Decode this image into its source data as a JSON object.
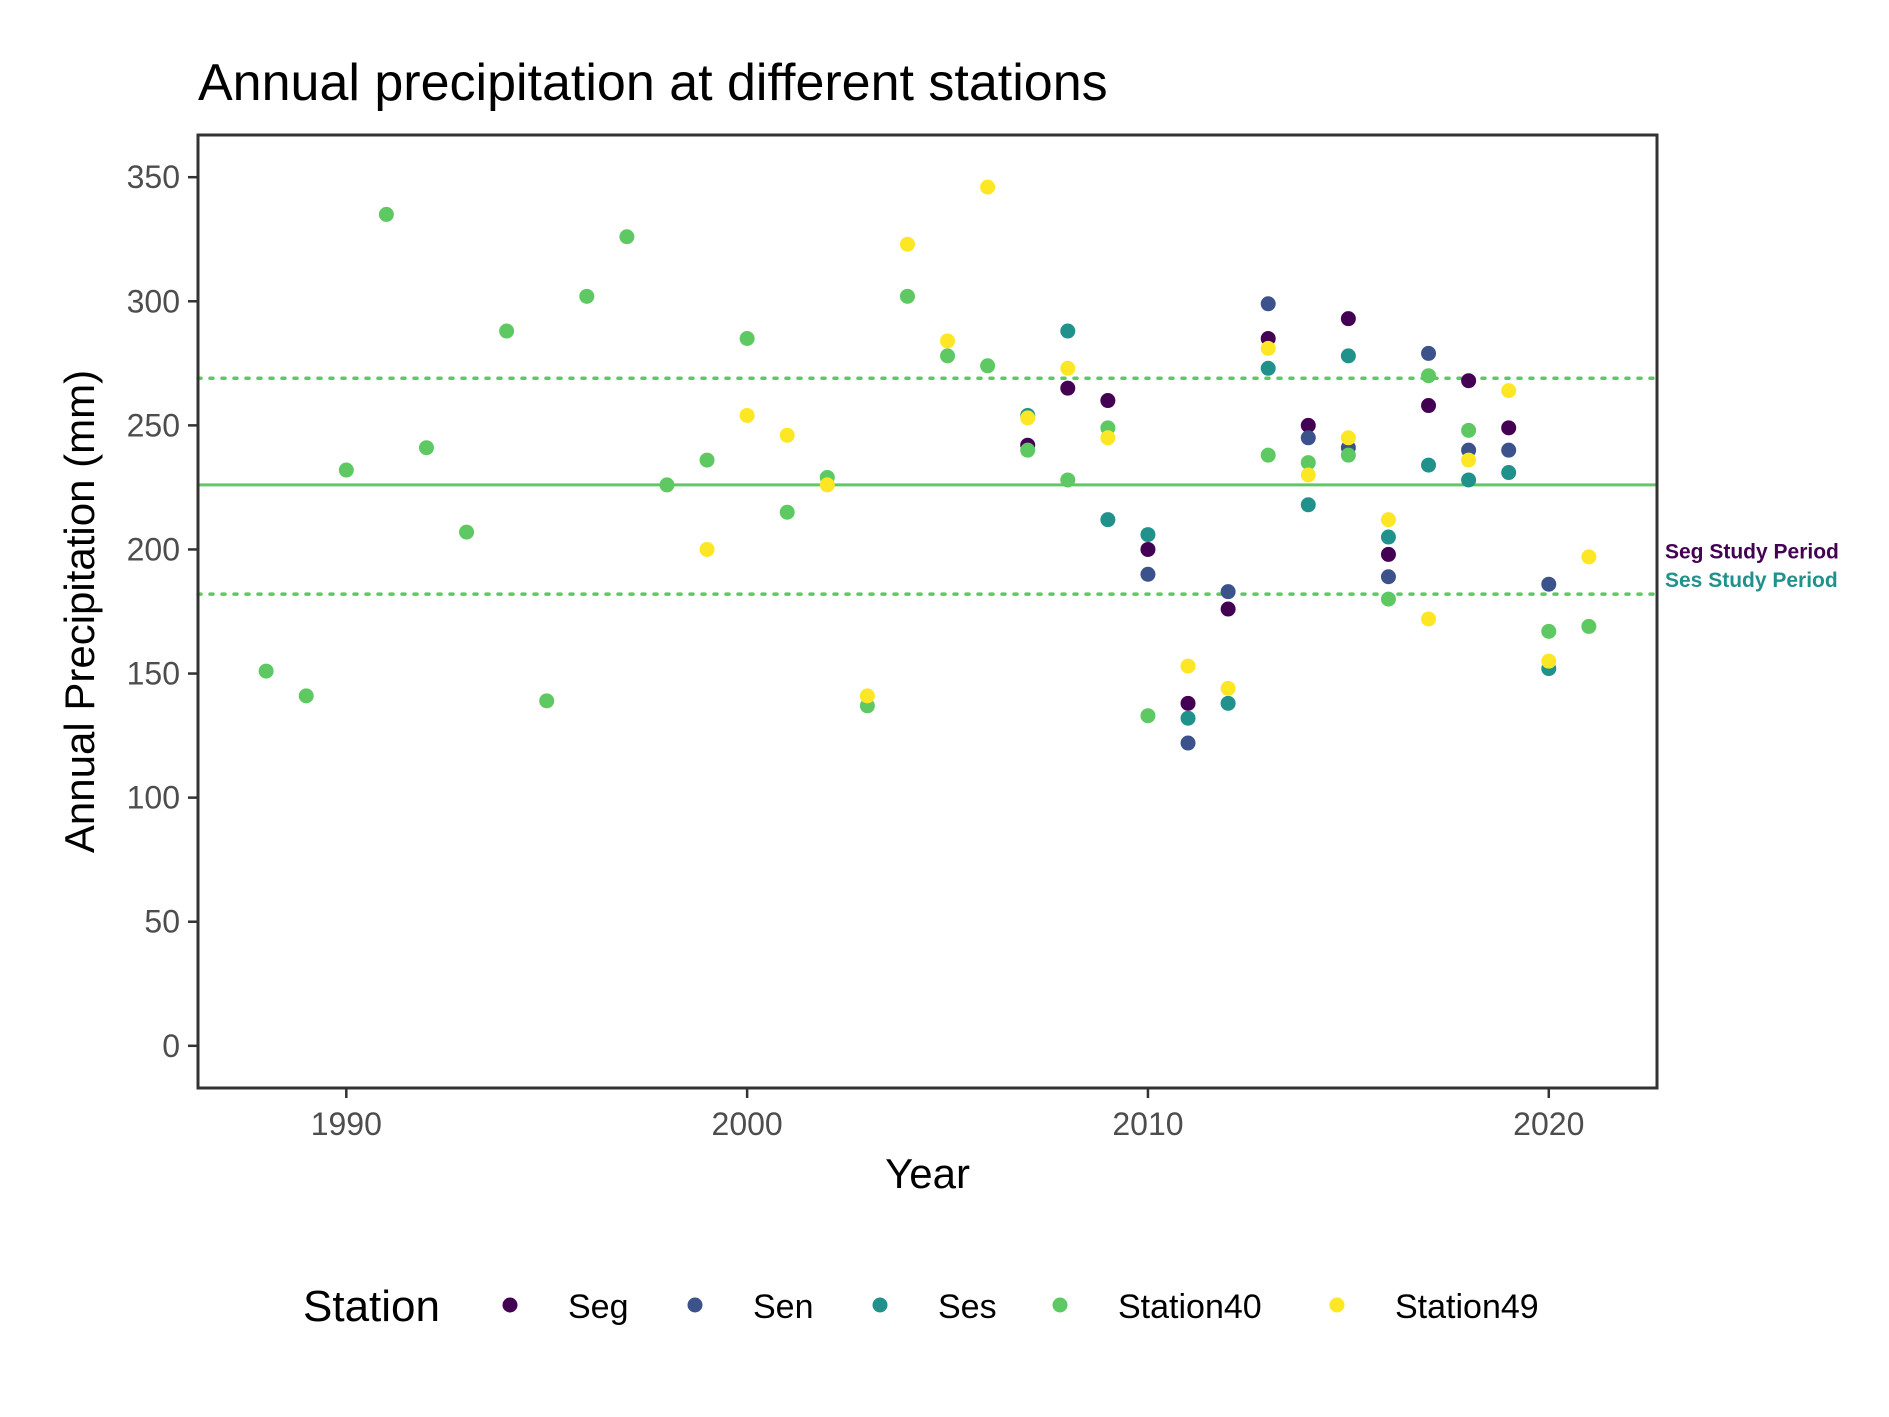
{
  "chart_data": {
    "type": "scatter",
    "title": "Annual precipitation at different stations",
    "xlabel": "Year",
    "ylabel": "Annual Precipitation (mm)",
    "xlim": [
      1986.3,
      2022.7
    ],
    "ylim": [
      -17,
      367
    ],
    "xticks": [
      1990,
      2000,
      2010,
      2020
    ],
    "yticks": [
      0,
      50,
      100,
      150,
      200,
      250,
      300,
      350
    ],
    "grid": false,
    "legend": {
      "title": "Station",
      "position": "bottom"
    },
    "reference_lines": [
      {
        "value": 226,
        "style": "solid",
        "color": "#5ec962"
      },
      {
        "value": 269,
        "style": "dotted",
        "color": "#5ec962"
      },
      {
        "value": 182,
        "style": "dotted",
        "color": "#5ec962"
      }
    ],
    "annotations": [
      {
        "text": "Seg Study Period",
        "color": "#440154"
      },
      {
        "text": "Ses Study Period",
        "color": "#21918c"
      }
    ],
    "series": [
      {
        "name": "Seg",
        "color": "#440154",
        "points": [
          [
            2007,
            242
          ],
          [
            2008,
            265
          ],
          [
            2009,
            260
          ],
          [
            2010,
            200
          ],
          [
            2011,
            138
          ],
          [
            2012,
            176
          ],
          [
            2013,
            285
          ],
          [
            2014,
            250
          ],
          [
            2015,
            293
          ],
          [
            2016,
            198
          ],
          [
            2017,
            258
          ],
          [
            2018,
            268
          ],
          [
            2019,
            249
          ]
        ]
      },
      {
        "name": "Sen",
        "color": "#3b528b",
        "points": [
          [
            2010,
            190
          ],
          [
            2011,
            122
          ],
          [
            2012,
            183
          ],
          [
            2013,
            299
          ],
          [
            2014,
            245
          ],
          [
            2015,
            241
          ],
          [
            2016,
            189
          ],
          [
            2017,
            279
          ],
          [
            2018,
            240
          ],
          [
            2019,
            240
          ],
          [
            2020,
            186
          ]
        ]
      },
      {
        "name": "Ses",
        "color": "#21918c",
        "points": [
          [
            2007,
            254
          ],
          [
            2008,
            288
          ],
          [
            2009,
            212
          ],
          [
            2010,
            206
          ],
          [
            2011,
            132
          ],
          [
            2012,
            138
          ],
          [
            2013,
            273
          ],
          [
            2014,
            218
          ],
          [
            2015,
            278
          ],
          [
            2016,
            205
          ],
          [
            2017,
            234
          ],
          [
            2018,
            228
          ],
          [
            2019,
            231
          ],
          [
            2020,
            152
          ]
        ]
      },
      {
        "name": "Station40",
        "color": "#5ec962",
        "points": [
          [
            1988,
            151
          ],
          [
            1989,
            141
          ],
          [
            1990,
            232
          ],
          [
            1991,
            335
          ],
          [
            1992,
            241
          ],
          [
            1993,
            207
          ],
          [
            1994,
            288
          ],
          [
            1995,
            139
          ],
          [
            1996,
            302
          ],
          [
            1997,
            326
          ],
          [
            1998,
            226
          ],
          [
            1999,
            236
          ],
          [
            2000,
            285
          ],
          [
            2001,
            215
          ],
          [
            2002,
            229
          ],
          [
            2003,
            137
          ],
          [
            2004,
            302
          ],
          [
            2005,
            278
          ],
          [
            2006,
            274
          ],
          [
            2007,
            240
          ],
          [
            2008,
            228
          ],
          [
            2009,
            249
          ],
          [
            2010,
            133
          ],
          [
            2013,
            238
          ],
          [
            2014,
            235
          ],
          [
            2015,
            238
          ],
          [
            2016,
            180
          ],
          [
            2017,
            270
          ],
          [
            2018,
            248
          ],
          [
            2020,
            167
          ],
          [
            2021,
            169
          ]
        ]
      },
      {
        "name": "Station49",
        "color": "#fde725",
        "points": [
          [
            1999,
            200
          ],
          [
            2000,
            254
          ],
          [
            2001,
            246
          ],
          [
            2002,
            226
          ],
          [
            2003,
            141
          ],
          [
            2004,
            323
          ],
          [
            2005,
            284
          ],
          [
            2006,
            346
          ],
          [
            2007,
            253
          ],
          [
            2008,
            273
          ],
          [
            2009,
            245
          ],
          [
            2011,
            153
          ],
          [
            2012,
            144
          ],
          [
            2013,
            281
          ],
          [
            2014,
            230
          ],
          [
            2015,
            245
          ],
          [
            2016,
            212
          ],
          [
            2017,
            172
          ],
          [
            2018,
            236
          ],
          [
            2019,
            264
          ],
          [
            2020,
            155
          ],
          [
            2021,
            197
          ]
        ]
      }
    ]
  }
}
